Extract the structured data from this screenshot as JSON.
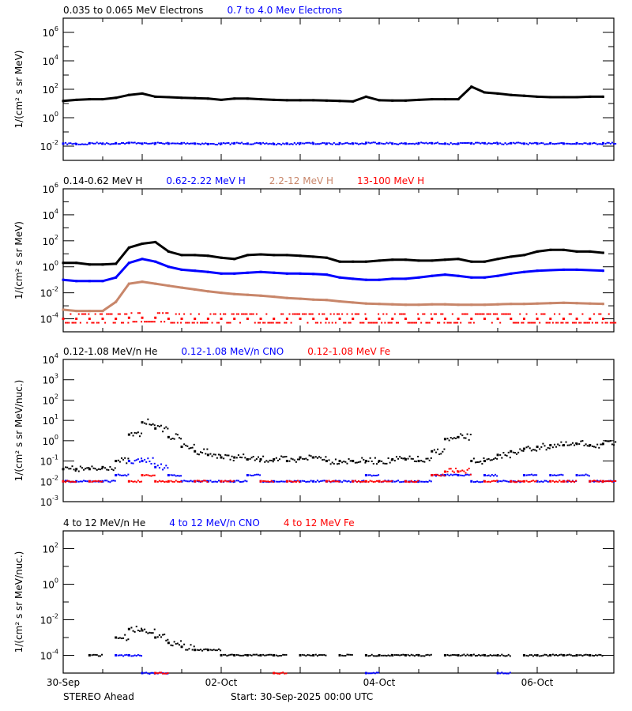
{
  "footer": {
    "left": "STEREO Ahead",
    "center": "Start: 30-Sep-2025 00:00 UTC"
  },
  "colors": {
    "black": "#000000",
    "blue": "#0000ff",
    "brown": "#c8866a",
    "red": "#ff0000"
  },
  "chart_data": [
    {
      "type": "scatter",
      "ylabel": "1/(cm² s sr MeV)",
      "ylog": true,
      "ylim": [
        0.001,
        10000000.0
      ],
      "ytick_exponents": [
        6,
        4,
        2,
        0,
        -2
      ],
      "xlim": [
        "2025-09-30T00:00",
        "2025-10-06T23:15"
      ],
      "xtick_labels": [],
      "x": [
        "2025-09-30T00:00",
        "2025-09-30T04:00",
        "2025-09-30T08:00",
        "2025-09-30T12:00",
        "2025-09-30T16:00",
        "2025-09-30T20:00",
        "2025-10-01T00:00",
        "2025-10-01T04:00",
        "2025-10-01T08:00",
        "2025-10-01T12:00",
        "2025-10-01T16:00",
        "2025-10-01T20:00",
        "2025-10-02T00:00",
        "2025-10-02T04:00",
        "2025-10-02T08:00",
        "2025-10-02T12:00",
        "2025-10-02T16:00",
        "2025-10-02T20:00",
        "2025-10-03T00:00",
        "2025-10-03T04:00",
        "2025-10-03T08:00",
        "2025-10-03T12:00",
        "2025-10-03T16:00",
        "2025-10-03T20:00",
        "2025-10-04T00:00",
        "2025-10-04T04:00",
        "2025-10-04T08:00",
        "2025-10-04T12:00",
        "2025-10-04T16:00",
        "2025-10-04T20:00",
        "2025-10-05T00:00",
        "2025-10-05T04:00",
        "2025-10-05T08:00",
        "2025-10-05T12:00",
        "2025-10-05T16:00",
        "2025-10-05T20:00",
        "2025-10-06T00:00",
        "2025-10-06T04:00",
        "2025-10-06T08:00",
        "2025-10-06T12:00",
        "2025-10-06T16:00",
        "2025-10-06T20:00"
      ],
      "series": [
        {
          "name": "0.035 to 0.065 MeV Electrons",
          "color": "#000000",
          "style": "line",
          "values": [
            15,
            18,
            20,
            20,
            25,
            40,
            50,
            30,
            28,
            25,
            24,
            22,
            18,
            22,
            22,
            20,
            18,
            17,
            17,
            17,
            16,
            15,
            14,
            30,
            17,
            16,
            16,
            18,
            20,
            20,
            20,
            150,
            60,
            50,
            40,
            35,
            30,
            28,
            28,
            28,
            30,
            30
          ]
        },
        {
          "name": "0.7 to 4.0 Mev Electrons",
          "color": "#0000ff",
          "style": "scatter",
          "values": [
            0.015,
            0.014,
            0.016,
            0.015,
            0.016,
            0.017,
            0.015,
            0.016,
            0.015,
            0.016,
            0.015,
            0.014,
            0.015,
            0.016,
            0.015,
            0.015,
            0.014,
            0.015,
            0.016,
            0.015,
            0.015,
            0.016,
            0.015,
            0.017,
            0.016,
            0.015,
            0.015,
            0.016,
            0.016,
            0.015,
            0.015,
            0.016,
            0.016,
            0.015,
            0.016,
            0.015,
            0.015,
            0.016,
            0.015,
            0.016,
            0.015,
            0.016
          ]
        }
      ]
    },
    {
      "type": "scatter",
      "ylabel": "1/(cm² s sr MeV)",
      "ylog": true,
      "ylim": [
        1e-05,
        1000000.0
      ],
      "ytick_exponents": [
        6,
        4,
        2,
        0,
        -2,
        -4
      ],
      "xlim": [
        "2025-09-30T00:00",
        "2025-10-06T23:15"
      ],
      "xtick_labels": [],
      "series": [
        {
          "name": "0.14-0.62 MeV H",
          "color": "#000000",
          "style": "line",
          "values": [
            2,
            2,
            1.5,
            1.5,
            1.7,
            30,
            60,
            80,
            15,
            8,
            8,
            7,
            5,
            4,
            8,
            9,
            8,
            8,
            7,
            6,
            5,
            2.5,
            2.5,
            2.5,
            3,
            3.5,
            3.5,
            3,
            3,
            3.5,
            4,
            2.5,
            2.5,
            4,
            6,
            8,
            15,
            20,
            20,
            15,
            15,
            12
          ]
        },
        {
          "name": "0.62-2.22 MeV H",
          "color": "#0000ff",
          "style": "line",
          "values": [
            0.1,
            0.08,
            0.08,
            0.08,
            0.15,
            2,
            4,
            2.5,
            1,
            0.6,
            0.5,
            0.4,
            0.3,
            0.3,
            0.35,
            0.4,
            0.35,
            0.3,
            0.3,
            0.28,
            0.25,
            0.15,
            0.12,
            0.1,
            0.1,
            0.12,
            0.12,
            0.15,
            0.2,
            0.25,
            0.2,
            0.15,
            0.15,
            0.2,
            0.3,
            0.4,
            0.5,
            0.55,
            0.6,
            0.6,
            0.55,
            0.5
          ]
        },
        {
          "name": "2.2-12 MeV H",
          "color": "#c8866a",
          "style": "line",
          "values": [
            0.0005,
            0.0004,
            0.0004,
            0.0004,
            0.002,
            0.05,
            0.07,
            0.05,
            0.035,
            0.025,
            0.018,
            0.013,
            0.01,
            0.008,
            0.007,
            0.006,
            0.005,
            0.004,
            0.0035,
            0.003,
            0.0028,
            0.0022,
            0.0018,
            0.0015,
            0.0014,
            0.0013,
            0.0012,
            0.0012,
            0.0013,
            0.0013,
            0.0012,
            0.0012,
            0.0012,
            0.0013,
            0.0014,
            0.0014,
            0.0015,
            0.0016,
            0.0017,
            0.0016,
            0.0015,
            0.0014
          ]
        },
        {
          "name": "13-100 MeV H",
          "color": "#ff0000",
          "style": "band",
          "values": [
            0.0001,
            0.0001,
            0.0001,
            0.0001,
            0.0001,
            0.00012,
            0.00012,
            0.00012,
            0.0001,
            0.0001,
            0.0001,
            0.0001,
            0.0001,
            0.0001,
            0.0001,
            0.0001,
            0.0001,
            0.0001,
            0.0001,
            0.0001,
            0.0001,
            0.0001,
            0.0001,
            0.0001,
            0.0001,
            0.0001,
            0.0001,
            0.0001,
            0.0001,
            0.0001,
            0.0001,
            0.0001,
            0.0001,
            0.0001,
            0.0001,
            0.0001,
            0.0001,
            0.0001,
            0.0001,
            0.0001,
            0.0001,
            0.0001
          ]
        }
      ]
    },
    {
      "type": "scatter",
      "ylabel": "1/(cm² s sr MeV/nuc.)",
      "ylog": true,
      "ylim": [
        0.001,
        10000.0
      ],
      "ytick_exponents": [
        4,
        3,
        2,
        1,
        0,
        -1,
        -2,
        -3
      ],
      "xlim": [
        "2025-09-30T00:00",
        "2025-10-06T23:15"
      ],
      "xtick_labels": [],
      "series": [
        {
          "name": "0.12-1.08 MeV/n He",
          "color": "#000000",
          "style": "scatter",
          "values": [
            0.04,
            0.04,
            0.04,
            0.05,
            0.1,
            2,
            8,
            4,
            1.5,
            0.5,
            0.3,
            0.2,
            0.15,
            0.15,
            0.12,
            0.12,
            0.12,
            0.1,
            0.15,
            0.15,
            0.1,
            0.1,
            0.1,
            0.1,
            0.1,
            0.12,
            0.12,
            0.1,
            0.3,
            1.2,
            1.5,
            0.1,
            0.1,
            0.2,
            0.3,
            0.4,
            0.5,
            0.6,
            0.6,
            0.7,
            0.6,
            0.7
          ]
        },
        {
          "name": "0.12-1.08 MeV/n CNO",
          "color": "#0000ff",
          "style": "scatter",
          "values": [
            0.01,
            0.01,
            0.01,
            0.01,
            0.02,
            0.1,
            0.1,
            0.05,
            0.02,
            0.01,
            0.01,
            0.01,
            0.01,
            0.01,
            0.02,
            0.01,
            0.01,
            0.01,
            0.01,
            0.01,
            0.01,
            0.01,
            0.01,
            0.02,
            0.01,
            0.01,
            0.01,
            0.01,
            0.02,
            0.02,
            0.02,
            0.01,
            0.02,
            0.01,
            0.01,
            0.02,
            0.01,
            0.02,
            0.01,
            0.02,
            0.01,
            0.01
          ]
        },
        {
          "name": "0.12-1.08 MeV Fe",
          "color": "#ff0000",
          "style": "scatter",
          "values": [
            0.01,
            null,
            0.01,
            null,
            null,
            0.01,
            0.02,
            0.01,
            0.01,
            null,
            0.01,
            null,
            0.01,
            null,
            null,
            0.01,
            null,
            0.01,
            null,
            null,
            0.01,
            null,
            0.01,
            0.01,
            0.01,
            null,
            0.01,
            null,
            0.02,
            0.03,
            0.03,
            null,
            0.01,
            null,
            0.01,
            0.01,
            null,
            0.01,
            0.01,
            null,
            0.01,
            0.01
          ]
        }
      ]
    },
    {
      "type": "scatter",
      "ylabel": "1/(cm² s sr MeV/nuc.)",
      "ylog": true,
      "ylim": [
        1e-05,
        1000.0
      ],
      "ytick_exponents": [
        2,
        0,
        -2,
        -4
      ],
      "xlim": [
        "2025-09-30T00:00",
        "2025-10-06T23:15"
      ],
      "xtick_labels": [
        "30-Sep",
        "02-Oct",
        "04-Oct",
        "06-Oct"
      ],
      "series": [
        {
          "name": "4 to 12 MeV/n He",
          "color": "#000000",
          "style": "scatter",
          "values": [
            null,
            null,
            0.0001,
            null,
            0.001,
            0.003,
            0.0025,
            0.001,
            0.0005,
            0.0003,
            0.0002,
            0.0002,
            0.0001,
            0.0001,
            0.0001,
            0.0001,
            0.0001,
            null,
            0.0001,
            0.0001,
            null,
            0.0001,
            null,
            0.0001,
            0.0001,
            0.0001,
            0.0001,
            0.0001,
            null,
            0.0001,
            0.0001,
            0.0001,
            0.0001,
            0.0001,
            null,
            0.0001,
            0.0001,
            0.0001,
            0.0001,
            0.0001,
            0.0001,
            null
          ]
        },
        {
          "name": "4 to 12 MeV/n CNO",
          "color": "#0000ff",
          "style": "scatter",
          "values": [
            null,
            null,
            null,
            null,
            0.0001,
            0.0001,
            1e-05,
            1e-05,
            null,
            null,
            null,
            null,
            null,
            null,
            null,
            null,
            null,
            null,
            null,
            null,
            null,
            null,
            null,
            1e-05,
            null,
            null,
            null,
            null,
            null,
            null,
            null,
            null,
            null,
            1e-05,
            null,
            null,
            null,
            null,
            null,
            null,
            null,
            null
          ]
        },
        {
          "name": "4 to 12 MeV Fe",
          "color": "#ff0000",
          "style": "scatter",
          "values": [
            null,
            null,
            null,
            null,
            null,
            null,
            null,
            1e-05,
            null,
            null,
            null,
            null,
            null,
            null,
            null,
            null,
            1e-05,
            null,
            null,
            null,
            null,
            null,
            null,
            null,
            null,
            null,
            null,
            null,
            null,
            null,
            null,
            null,
            null,
            null,
            null,
            null,
            null,
            null,
            null,
            null,
            null,
            null
          ]
        }
      ]
    }
  ]
}
